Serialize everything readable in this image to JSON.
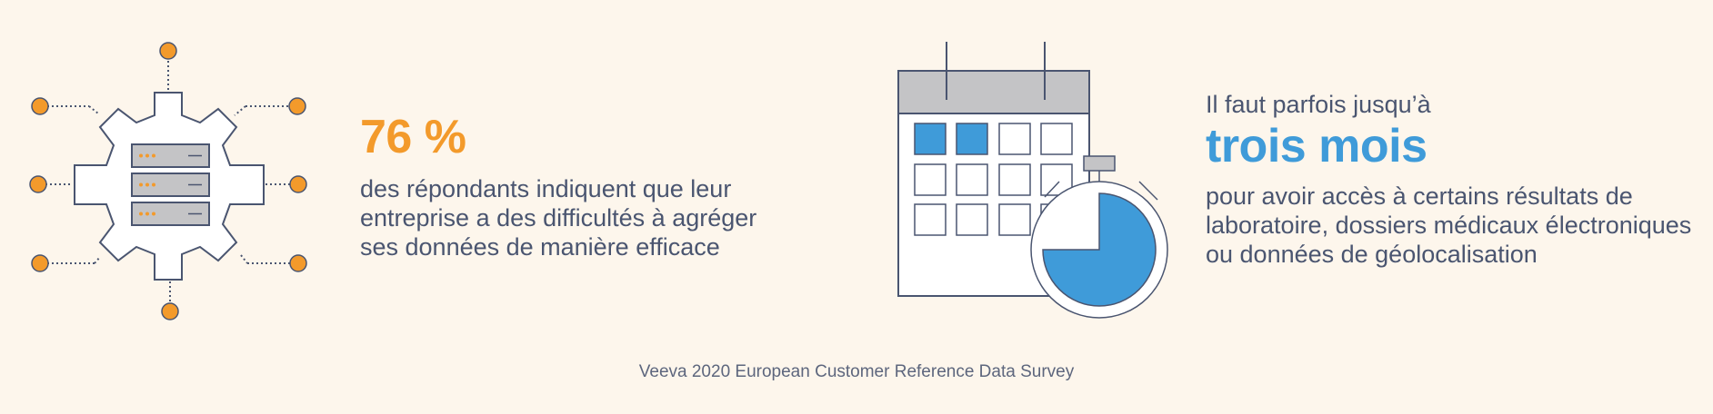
{
  "stat_left": {
    "value": "76 %",
    "description_lines": [
      "des répondants indiquent que leur",
      "entreprise a des difficultés à agréger",
      "ses données de manière efficace"
    ],
    "accent_color": "#f39a2b",
    "icon": "gear-server-icon"
  },
  "stat_right": {
    "intro": "Il faut parfois jusqu’à",
    "value": "trois mois",
    "description_lines": [
      "pour avoir accès à certains résultats de",
      "laboratoire, dossiers médicaux électroniques",
      "ou données de géolocalisation"
    ],
    "accent_color": "#3f9bd9",
    "icon": "calendar-stopwatch-icon"
  },
  "footer": {
    "source": "Veeva 2020 European Customer Reference Data Survey"
  }
}
